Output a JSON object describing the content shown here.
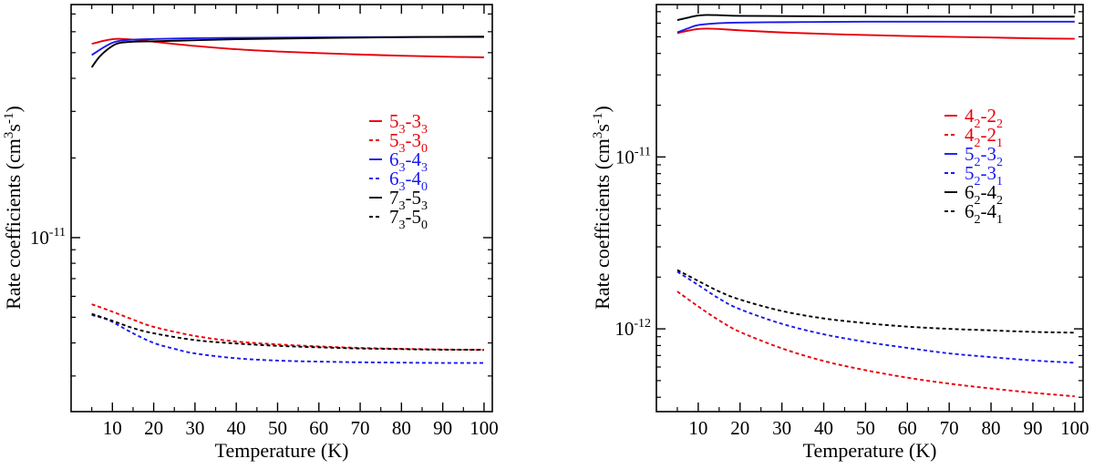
{
  "chart_data": [
    {
      "type": "line",
      "panel": "left",
      "xlabel": "Temperature (K)",
      "ylabel": "Rate coefficients (cm³s⁻¹)",
      "ylabel_parts": {
        "a": "Rate coefficients (cm",
        "b": "3",
        "c": "s",
        "d": "-1",
        "e": ")"
      },
      "yscale": "log",
      "xlim": [
        0,
        102
      ],
      "ylim": [
        2.2e-12,
        7.6e-11
      ],
      "xticks": [
        10,
        20,
        30,
        40,
        50,
        60,
        70,
        80,
        90,
        100
      ],
      "yticks_labeled": [
        {
          "value": 1e-11,
          "base": "10",
          "exp": "-11"
        }
      ],
      "legend_position": "center-right",
      "series": [
        {
          "name": "5_3-3_3",
          "label_main": "5",
          "label_sub1": "3",
          "label_dash": "-3",
          "label_sub2": "3",
          "color": "#e8000b",
          "dash": "solid",
          "x": [
            5,
            8,
            10,
            12,
            15,
            20,
            30,
            40,
            50,
            60,
            70,
            80,
            90,
            100
          ],
          "y": [
            5.4e-11,
            5.55e-11,
            5.62e-11,
            5.64e-11,
            5.6e-11,
            5.5e-11,
            5.3e-11,
            5.15e-11,
            5.05e-11,
            4.98e-11,
            4.92e-11,
            4.87e-11,
            4.83e-11,
            4.8e-11
          ]
        },
        {
          "name": "5_3-3_0",
          "label_main": "5",
          "label_sub1": "3",
          "label_dash": "-3",
          "label_sub2": "0",
          "color": "#e8000b",
          "dash": "dashed",
          "x": [
            5,
            10,
            15,
            20,
            30,
            40,
            50,
            60,
            70,
            80,
            90,
            100
          ],
          "y": [
            5.6e-12,
            5.25e-12,
            4.9e-12,
            4.6e-12,
            4.25e-12,
            4.05e-12,
            3.95e-12,
            3.88e-12,
            3.83e-12,
            3.8e-12,
            3.78e-12,
            3.76e-12
          ]
        },
        {
          "name": "6_3-4_3",
          "label_main": "6",
          "label_sub1": "3",
          "label_dash": "-4",
          "label_sub2": "3",
          "color": "#1a1aee",
          "dash": "solid",
          "x": [
            5,
            8,
            10,
            12,
            15,
            20,
            30,
            40,
            50,
            60,
            70,
            80,
            90,
            100
          ],
          "y": [
            4.9e-11,
            5.25e-11,
            5.45e-11,
            5.55e-11,
            5.6e-11,
            5.63e-11,
            5.67e-11,
            5.69e-11,
            5.7e-11,
            5.71e-11,
            5.72e-11,
            5.73e-11,
            5.73e-11,
            5.73e-11
          ]
        },
        {
          "name": "6_3-4_0",
          "label_main": "6",
          "label_sub1": "3",
          "label_dash": "-4",
          "label_sub2": "0",
          "color": "#1a1aee",
          "dash": "dashed",
          "x": [
            5,
            8,
            10,
            15,
            20,
            25,
            30,
            40,
            50,
            60,
            70,
            80,
            90,
            100
          ],
          "y": [
            5.1e-12,
            4.95e-12,
            4.8e-12,
            4.35e-12,
            4e-12,
            3.8e-12,
            3.65e-12,
            3.5e-12,
            3.43e-12,
            3.4e-12,
            3.38e-12,
            3.37e-12,
            3.36e-12,
            3.36e-12
          ]
        },
        {
          "name": "7_3-5_3",
          "label_main": "7",
          "label_sub1": "3",
          "label_dash": "-5",
          "label_sub2": "3",
          "color": "#000000",
          "dash": "solid",
          "x": [
            5,
            7,
            10,
            12,
            15,
            20,
            30,
            40,
            50,
            60,
            70,
            80,
            90,
            100
          ],
          "y": [
            4.4e-11,
            4.85e-11,
            5.3e-11,
            5.45e-11,
            5.5e-11,
            5.52e-11,
            5.57e-11,
            5.62e-11,
            5.65e-11,
            5.68e-11,
            5.7e-11,
            5.72e-11,
            5.74e-11,
            5.75e-11
          ]
        },
        {
          "name": "7_3-5_0",
          "label_main": "7",
          "label_sub1": "3",
          "label_dash": "-5",
          "label_sub2": "0",
          "color": "#000000",
          "dash": "dashed",
          "x": [
            5,
            10,
            15,
            20,
            30,
            40,
            50,
            60,
            70,
            80,
            90,
            100
          ],
          "y": [
            5.15e-12,
            4.85e-12,
            4.55e-12,
            4.35e-12,
            4.1e-12,
            3.98e-12,
            3.9e-12,
            3.85e-12,
            3.81e-12,
            3.79e-12,
            3.77e-12,
            3.77e-12
          ]
        }
      ]
    },
    {
      "type": "line",
      "panel": "right",
      "xlabel": "Temperature (K)",
      "ylabel": "Rate coefficients (cm³s⁻¹)",
      "ylabel_parts": {
        "a": "Rate coefficients (cm",
        "b": "3",
        "c": "s",
        "d": "-1",
        "e": ")"
      },
      "yscale": "log",
      "xlim": [
        0,
        102
      ],
      "ylim": [
        3.3e-13,
        7.7e-11
      ],
      "xticks": [
        10,
        20,
        30,
        40,
        50,
        60,
        70,
        80,
        90,
        100
      ],
      "yticks_labeled": [
        {
          "value": 1e-11,
          "base": "10",
          "exp": "-11"
        },
        {
          "value": 1e-12,
          "base": "10",
          "exp": "-12"
        }
      ],
      "legend_position": "center-right",
      "series": [
        {
          "name": "4_2-2_2",
          "label_main": "4",
          "label_sub1": "2",
          "label_dash": "-2",
          "label_sub2": "2",
          "color": "#e8000b",
          "dash": "solid",
          "x": [
            5,
            8,
            10,
            12,
            15,
            20,
            30,
            40,
            50,
            60,
            70,
            80,
            90,
            100
          ],
          "y": [
            5.25e-11,
            5.45e-11,
            5.55e-11,
            5.58e-11,
            5.55e-11,
            5.45e-11,
            5.3e-11,
            5.2e-11,
            5.12e-11,
            5.05e-11,
            5e-11,
            4.95e-11,
            4.9e-11,
            4.87e-11
          ]
        },
        {
          "name": "4_2-2_1",
          "label_main": "4",
          "label_sub1": "2",
          "label_dash": "-2",
          "label_sub2": "1",
          "color": "#e8000b",
          "dash": "dashed",
          "x": [
            5,
            10,
            15,
            20,
            30,
            40,
            50,
            60,
            70,
            80,
            90,
            100
          ],
          "y": [
            1.65e-12,
            1.35e-12,
            1.12e-12,
            9.6e-13,
            7.7e-13,
            6.5e-13,
            5.75e-13,
            5.2e-13,
            4.8e-13,
            4.5e-13,
            4.25e-13,
            4.05e-13
          ]
        },
        {
          "name": "5_2-3_2",
          "label_main": "5",
          "label_sub1": "2",
          "label_dash": "-3",
          "label_sub2": "2",
          "color": "#1a1aee",
          "dash": "solid",
          "x": [
            5,
            8,
            10,
            15,
            20,
            30,
            40,
            50,
            60,
            70,
            80,
            90,
            100
          ],
          "y": [
            5.3e-11,
            5.65e-11,
            5.85e-11,
            6e-11,
            6.05e-11,
            6.08e-11,
            6.1e-11,
            6.12e-11,
            6.12e-11,
            6.12e-11,
            6.12e-11,
            6.12e-11,
            6.12e-11
          ]
        },
        {
          "name": "5_2-3_1",
          "label_main": "5",
          "label_sub1": "2",
          "label_dash": "-3",
          "label_sub2": "1",
          "color": "#1a1aee",
          "dash": "dashed",
          "x": [
            5,
            10,
            15,
            20,
            30,
            40,
            50,
            60,
            70,
            80,
            90,
            100
          ],
          "y": [
            2.15e-12,
            1.8e-12,
            1.5e-12,
            1.3e-12,
            1.07e-12,
            9.3e-13,
            8.4e-13,
            7.75e-13,
            7.2e-13,
            6.85e-13,
            6.55e-13,
            6.35e-13
          ]
        },
        {
          "name": "6_2-4_2",
          "label_main": "6",
          "label_sub1": "2",
          "label_dash": "-4",
          "label_sub2": "2",
          "color": "#000000",
          "dash": "solid",
          "x": [
            5,
            8,
            10,
            12,
            15,
            20,
            30,
            40,
            50,
            60,
            70,
            80,
            90,
            100
          ],
          "y": [
            6.25e-11,
            6.5e-11,
            6.65e-11,
            6.7e-11,
            6.68e-11,
            6.62e-11,
            6.6e-11,
            6.58e-11,
            6.57e-11,
            6.56e-11,
            6.56e-11,
            6.55e-11,
            6.55e-11,
            6.55e-11
          ]
        },
        {
          "name": "6_2-4_1",
          "label_main": "6",
          "label_sub1": "2",
          "label_dash": "-4",
          "label_sub2": "1",
          "color": "#000000",
          "dash": "dashed",
          "x": [
            5,
            10,
            15,
            20,
            30,
            40,
            50,
            60,
            70,
            80,
            90,
            100
          ],
          "y": [
            2.2e-12,
            1.9e-12,
            1.65e-12,
            1.48e-12,
            1.27e-12,
            1.15e-12,
            1.08e-12,
            1.03e-12,
            1e-12,
            9.8e-13,
            9.6e-13,
            9.5e-13
          ]
        }
      ]
    }
  ]
}
